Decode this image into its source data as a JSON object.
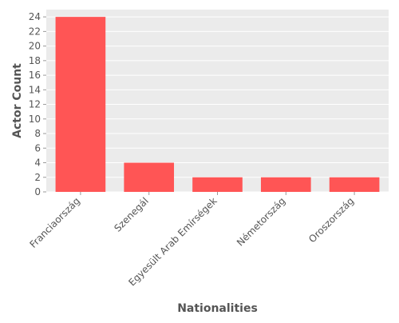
{
  "chart_data": {
    "type": "bar",
    "categories": [
      "Franciaország",
      "Szenegál",
      "Egyesült Arab Emírségek",
      "Németország",
      "Oroszország"
    ],
    "values": [
      24,
      4,
      2,
      2,
      2
    ],
    "title": "",
    "xlabel": "Nationalities",
    "ylabel": "Actor Count",
    "ylim": [
      0,
      25
    ],
    "yticks": [
      0,
      2,
      4,
      6,
      8,
      10,
      12,
      14,
      16,
      18,
      20,
      22,
      24
    ],
    "grid": true,
    "legend": "none",
    "colors": {
      "bar": "#ff5555",
      "panel_background": "#ebebeb",
      "gridline": "#ffffff",
      "text": "#555555"
    }
  }
}
